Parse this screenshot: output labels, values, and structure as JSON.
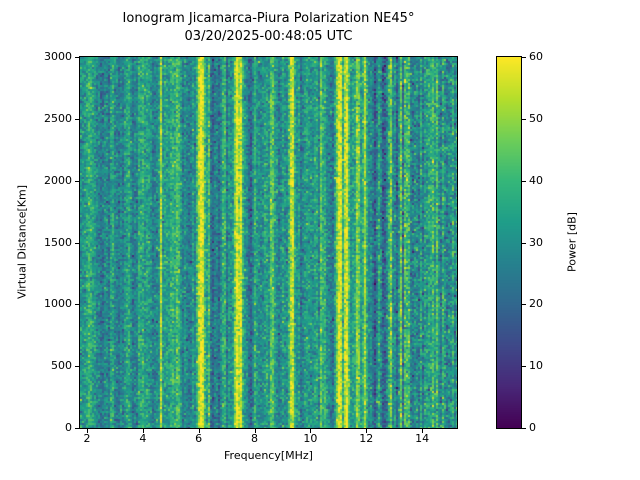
{
  "chart_data": {
    "type": "heatmap",
    "title": "Ionogram Jicamarca-Piura Polarization NE45°",
    "subtitle": "03/20/2025-00:48:05 UTC",
    "xlabel": "Frequency[MHz]",
    "ylabel": "Virtual Distance[Km]",
    "x_range": [
      1.75,
      15.25
    ],
    "y_range": [
      0,
      3000
    ],
    "x_ticks": [
      2,
      4,
      6,
      8,
      10,
      12,
      14
    ],
    "y_ticks": [
      0,
      500,
      1000,
      1500,
      2000,
      2500,
      3000
    ],
    "grid": false,
    "colorbar": {
      "label": "Power [dB]",
      "range": [
        0,
        60
      ],
      "ticks": [
        0,
        10,
        20,
        30,
        40,
        50,
        60
      ],
      "colormap": "viridis",
      "stops": [
        "#440154",
        "#482878",
        "#3e4989",
        "#31688e",
        "#26828e",
        "#1f9e89",
        "#35b779",
        "#6ece58",
        "#b5de2b",
        "#fde725"
      ]
    },
    "background": {
      "mean_db": 33,
      "column_std_db": 3.5,
      "pixel_std_db": 5.5,
      "right_region": {
        "from_mhz": 12.3,
        "column_std_db": 5.5,
        "pixel_std_db": 6.5
      }
    },
    "rfi_stripes_bright": [
      {
        "freq_mhz": 2.1,
        "width_mhz": 0.04,
        "power_db": 46
      },
      {
        "freq_mhz": 4.65,
        "width_mhz": 0.04,
        "power_db": 47
      },
      {
        "freq_mhz": 5.25,
        "width_mhz": 0.04,
        "power_db": 45
      },
      {
        "freq_mhz": 6.05,
        "width_mhz": 0.07,
        "power_db": 59
      },
      {
        "freq_mhz": 6.18,
        "width_mhz": 0.04,
        "power_db": 52
      },
      {
        "freq_mhz": 7.35,
        "width_mhz": 0.06,
        "power_db": 59
      },
      {
        "freq_mhz": 7.5,
        "width_mhz": 0.04,
        "power_db": 54
      },
      {
        "freq_mhz": 8.62,
        "width_mhz": 0.05,
        "power_db": 47
      },
      {
        "freq_mhz": 9.35,
        "width_mhz": 0.06,
        "power_db": 52
      },
      {
        "freq_mhz": 10.4,
        "width_mhz": 0.04,
        "power_db": 47
      },
      {
        "freq_mhz": 11.05,
        "width_mhz": 0.1,
        "power_db": 59
      },
      {
        "freq_mhz": 11.3,
        "width_mhz": 0.05,
        "power_db": 56
      },
      {
        "freq_mhz": 11.7,
        "width_mhz": 0.05,
        "power_db": 53
      },
      {
        "freq_mhz": 11.95,
        "width_mhz": 0.04,
        "power_db": 50
      },
      {
        "freq_mhz": 12.9,
        "width_mhz": 0.04,
        "power_db": 45
      },
      {
        "freq_mhz": 13.4,
        "width_mhz": 0.03,
        "power_db": 44
      },
      {
        "freq_mhz": 14.5,
        "width_mhz": 0.04,
        "power_db": 45
      }
    ],
    "rfi_stripes_dark": [
      {
        "freq_mhz": 2.5,
        "width_mhz": 0.08,
        "power_db": 24
      },
      {
        "freq_mhz": 3.15,
        "width_mhz": 0.1,
        "power_db": 25
      },
      {
        "freq_mhz": 3.7,
        "width_mhz": 0.06,
        "power_db": 26
      },
      {
        "freq_mhz": 4.35,
        "width_mhz": 0.07,
        "power_db": 25
      },
      {
        "freq_mhz": 5.6,
        "width_mhz": 0.08,
        "power_db": 24
      },
      {
        "freq_mhz": 6.55,
        "width_mhz": 0.1,
        "power_db": 23
      },
      {
        "freq_mhz": 7.05,
        "width_mhz": 0.05,
        "power_db": 25
      },
      {
        "freq_mhz": 7.85,
        "width_mhz": 0.08,
        "power_db": 24
      },
      {
        "freq_mhz": 8.3,
        "width_mhz": 0.06,
        "power_db": 25
      },
      {
        "freq_mhz": 9.7,
        "width_mhz": 0.06,
        "power_db": 26
      },
      {
        "freq_mhz": 10.75,
        "width_mhz": 0.08,
        "power_db": 23
      },
      {
        "freq_mhz": 12.35,
        "width_mhz": 0.15,
        "power_db": 26
      },
      {
        "freq_mhz": 13.15,
        "width_mhz": 0.1,
        "power_db": 27
      },
      {
        "freq_mhz": 14.05,
        "width_mhz": 0.12,
        "power_db": 26
      },
      {
        "freq_mhz": 14.8,
        "width_mhz": 0.06,
        "power_db": 27
      }
    ]
  }
}
